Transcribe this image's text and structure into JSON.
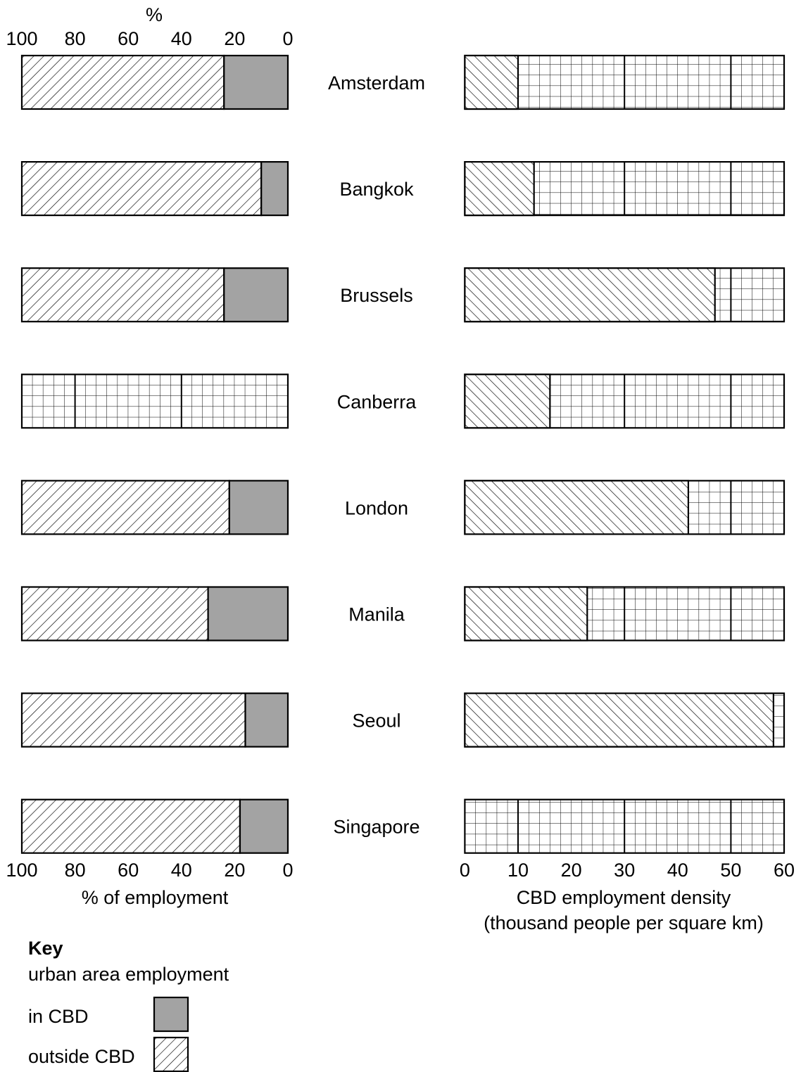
{
  "colors": {
    "in_cbd_fill": "#a3a3a3",
    "stroke": "#000000",
    "background": "#ffffff"
  },
  "chart_data": [
    {
      "type": "bar",
      "orientation": "horizontal",
      "stacked": true,
      "x_reversed": true,
      "title": "",
      "top_axis_label": "%",
      "xlabel": "% of employment",
      "xlim": [
        0,
        100
      ],
      "ticks": [
        "100",
        "80",
        "60",
        "40",
        "20",
        "0"
      ],
      "categories": [
        "Amsterdam",
        "Bangkok",
        "Brussels",
        "Canberra",
        "London",
        "Manila",
        "Seoul",
        "Singapore"
      ],
      "series": [
        {
          "name": "in CBD",
          "pattern": "solid-grey",
          "values": [
            24,
            10,
            24,
            0,
            22,
            30,
            16,
            18
          ]
        },
        {
          "name": "outside CBD",
          "pattern": "diagonal-hatch",
          "values": [
            76,
            90,
            76,
            0,
            78,
            70,
            84,
            82
          ]
        }
      ],
      "missing_data_categories": [
        "Canberra"
      ]
    },
    {
      "type": "bar",
      "orientation": "horizontal",
      "title": "",
      "xlabel": "CBD employment density",
      "xlabel_line2": "(thousand people per square km)",
      "xlim": [
        0,
        60
      ],
      "ticks": [
        "0",
        "10",
        "20",
        "30",
        "40",
        "50",
        "60"
      ],
      "categories": [
        "Amsterdam",
        "Bangkok",
        "Brussels",
        "Canberra",
        "London",
        "Manila",
        "Seoul",
        "Singapore"
      ],
      "series": [
        {
          "name": "",
          "pattern": "diagonal-hatch",
          "values": [
            10,
            13,
            47,
            16,
            42,
            23,
            58,
            0
          ]
        }
      ],
      "missing_data_categories": [
        "Singapore"
      ]
    }
  ],
  "key": {
    "title": "Key",
    "subtitle": "urban area employment",
    "items": [
      {
        "label": "in CBD",
        "pattern": "solid-grey"
      },
      {
        "label": "outside CBD",
        "pattern": "diagonal-hatch"
      }
    ]
  }
}
